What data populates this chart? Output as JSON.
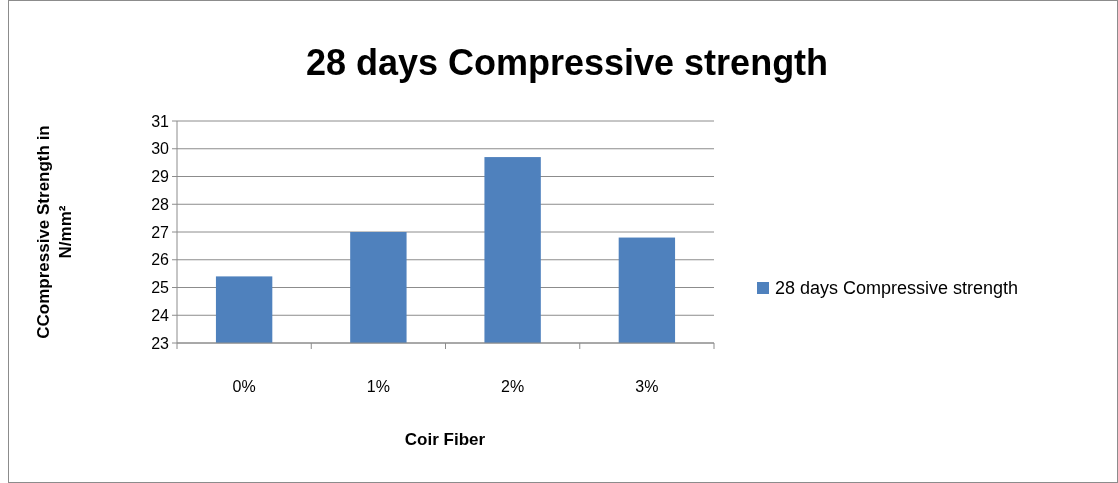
{
  "chart_data": {
    "type": "bar",
    "title": "28 days Compressive strength",
    "xlabel": "Coir Fiber",
    "ylabel": "CCompressive Strength in N/mm²",
    "categories": [
      "0%",
      "1%",
      "2%",
      "3%"
    ],
    "series": [
      {
        "name": "28 days Compressive strength",
        "color": "#4f81bd",
        "values": [
          25.4,
          27.0,
          29.7,
          26.8
        ]
      }
    ],
    "ylim": [
      23,
      31
    ],
    "yticks": [
      23,
      24,
      25,
      26,
      27,
      28,
      29,
      30,
      31
    ],
    "grid": "y",
    "legend": "right"
  }
}
